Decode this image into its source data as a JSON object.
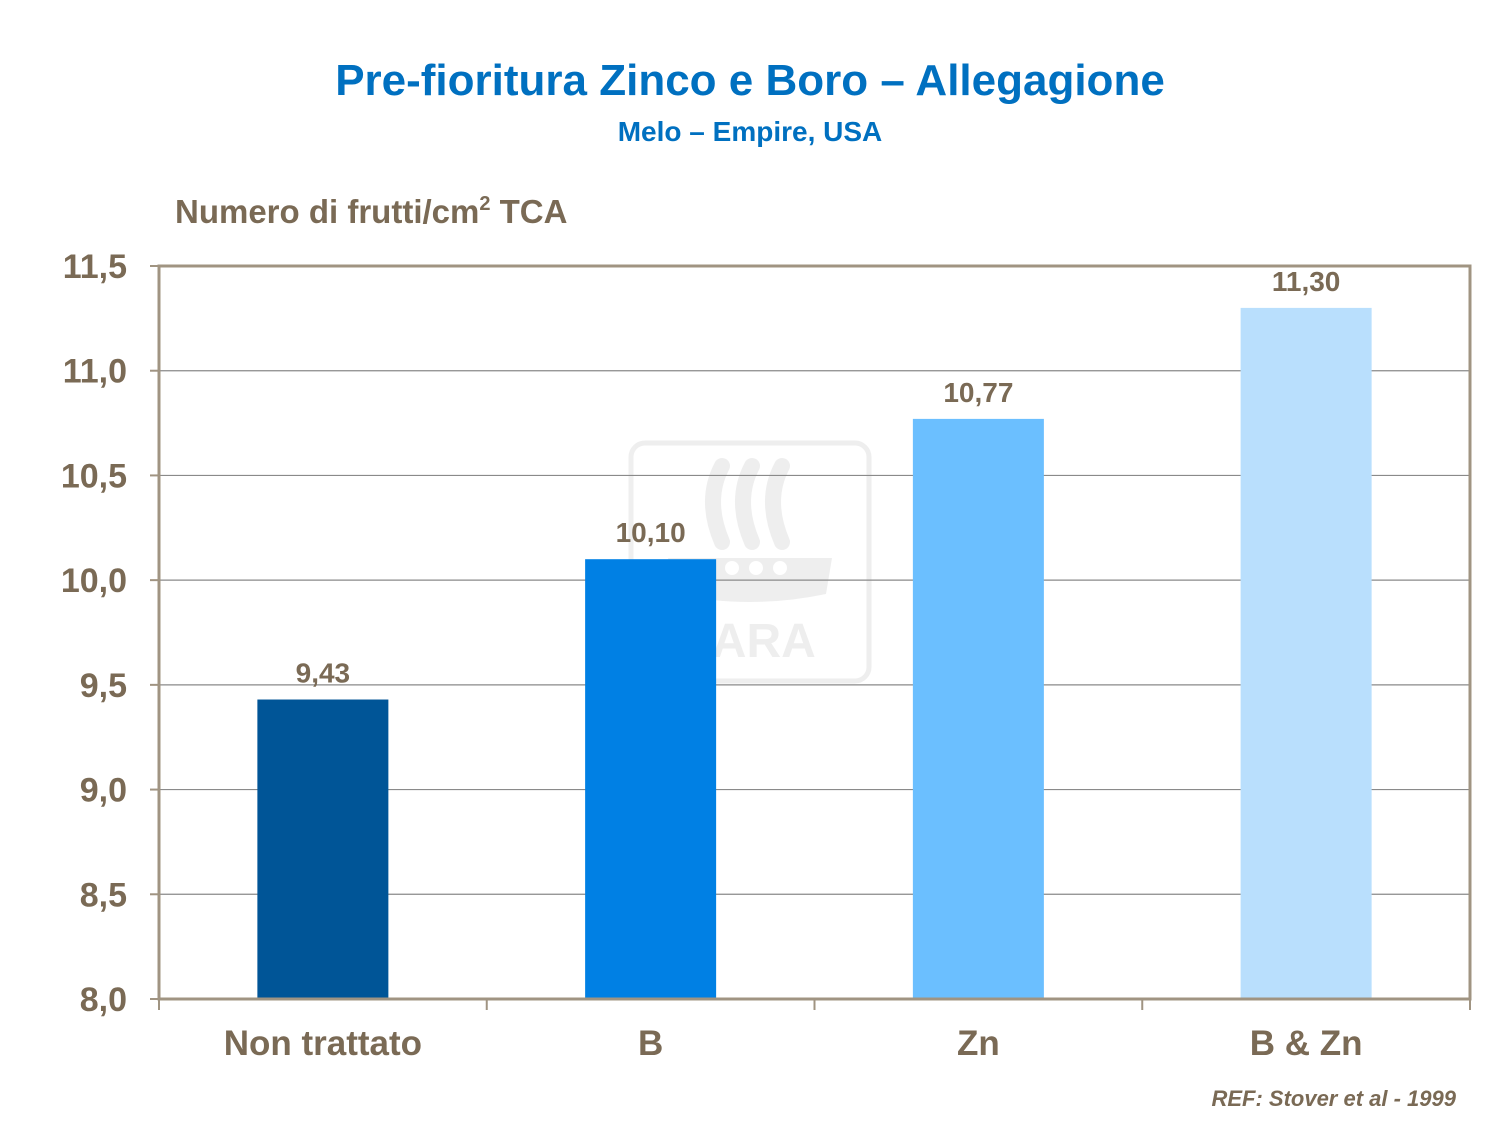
{
  "title": "Pre-fioritura Zinco e Boro – Allegagione",
  "subtitle": "Melo – Empire, USA",
  "ylabel": {
    "main": "Numero di frutti/cm",
    "sup": "2",
    "suffix": " TCA"
  },
  "reference": "REF: Stover et al - 1999",
  "watermark": {
    "text": "YARA",
    "icon": "yara-viking-ship-logo"
  },
  "colors": {
    "axis_text": "#7a6a55",
    "title": "#0070c0"
  },
  "chart_data": {
    "type": "bar",
    "title": "Pre-fioritura Zinco e Boro – Allegagione",
    "subtitle": "Melo – Empire, USA",
    "ylabel": "Numero di frutti/cm2 TCA",
    "xlabel": "",
    "ylim": [
      8.0,
      11.5
    ],
    "yticks": [
      8.0,
      8.5,
      9.0,
      9.5,
      10.0,
      10.5,
      11.0,
      11.5
    ],
    "ytick_labels": [
      "8,0",
      "8,5",
      "9,0",
      "9,5",
      "10,0",
      "10,5",
      "11,0",
      "11,5"
    ],
    "grid": true,
    "categories": [
      "Non trattato",
      "B",
      "Zn",
      "B & Zn"
    ],
    "values": [
      9.43,
      10.1,
      10.77,
      11.3
    ],
    "value_labels": [
      "9,43",
      "10,10",
      "10,77",
      "11,30"
    ],
    "bar_colors": [
      "#005597",
      "#0080e4",
      "#6bbfff",
      "#b9dffd"
    ]
  }
}
